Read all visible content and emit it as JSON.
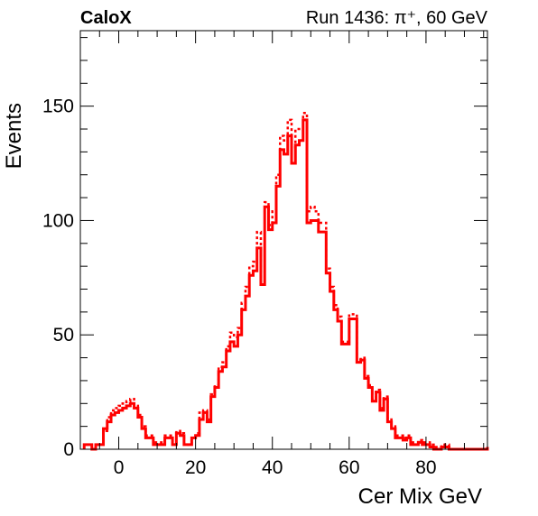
{
  "chart_data": {
    "type": "histogram",
    "title": "CaloX",
    "subtitle": "Run 1436: π⁺, 60 GeV",
    "xlabel": "Cer Mix GeV",
    "ylabel": "Events",
    "xlim": [
      -10,
      96
    ],
    "ylim": [
      0,
      183
    ],
    "bin_width": 1,
    "x_ticks": [
      0,
      20,
      40,
      60,
      80
    ],
    "y_ticks": [
      0,
      50,
      100,
      150
    ],
    "grid": false,
    "legend": "none",
    "series": [
      {
        "style": "solid",
        "color": "#ff0000",
        "x_start": -9,
        "values": [
          2,
          2,
          0,
          2,
          2,
          9,
          12,
          15,
          16,
          17,
          18,
          19,
          20,
          18,
          14,
          9,
          5,
          5,
          2,
          2,
          2,
          5,
          5,
          2,
          7,
          6,
          2,
          2,
          5,
          6,
          13,
          16,
          12,
          23,
          27,
          34,
          36,
          43,
          47,
          45,
          50,
          61,
          67,
          76,
          78,
          88,
          72,
          106,
          96,
          99,
          115,
          131,
          129,
          137,
          125,
          133,
          135,
          144,
          99,
          100,
          100,
          95,
          95,
          77,
          69,
          61,
          56,
          46,
          46,
          57,
          57,
          38,
          39,
          31,
          27,
          21,
          25,
          17,
          22,
          12,
          9,
          5,
          5,
          4,
          5,
          2,
          2,
          3,
          2,
          2,
          1,
          0,
          0,
          1,
          1,
          0,
          0,
          0,
          0,
          0,
          0,
          0,
          0,
          0,
          0,
          1
        ]
      },
      {
        "style": "dashed",
        "color": "#ff0000",
        "x_start": -9,
        "values": [
          2,
          2,
          0,
          2,
          2,
          8,
          14,
          17,
          18,
          19,
          20,
          21,
          22,
          19,
          15,
          10,
          6,
          6,
          3,
          3,
          3,
          6,
          6,
          2,
          8,
          7,
          2,
          2,
          5,
          7,
          16,
          17,
          13,
          24,
          28,
          36,
          38,
          45,
          51,
          49,
          53,
          64,
          71,
          80,
          82,
          95,
          75,
          108,
          98,
          104,
          120,
          137,
          135,
          144,
          132,
          140,
          140,
          147,
          104,
          106,
          104,
          99,
          99,
          79,
          71,
          63,
          58,
          47,
          47,
          59,
          59,
          39,
          40,
          32,
          28,
          22,
          26,
          18,
          23,
          13,
          10,
          6,
          6,
          5,
          6,
          3,
          3,
          4,
          3,
          3,
          2,
          1,
          1,
          2,
          2,
          0,
          0,
          0,
          0,
          0,
          0,
          0,
          0,
          0,
          0,
          1
        ]
      }
    ]
  }
}
